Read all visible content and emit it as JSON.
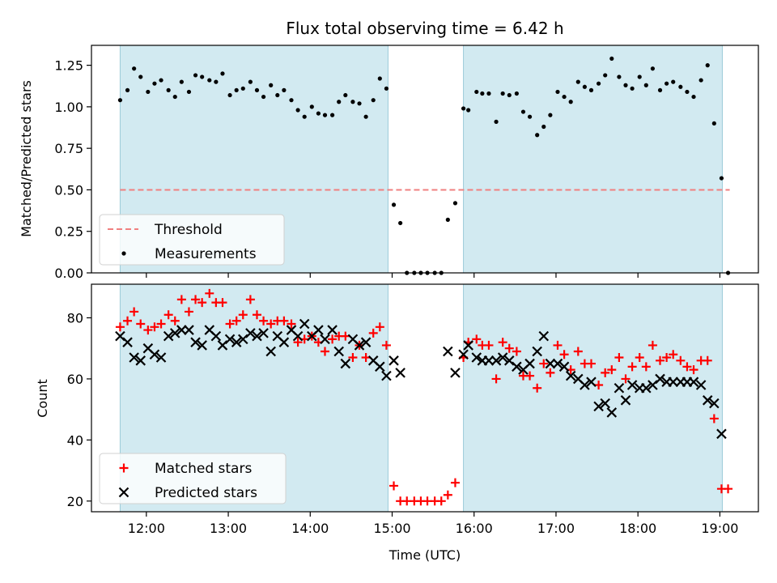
{
  "chart_data": [
    {
      "type": "scatter",
      "title": "Flux total observing time = 6.42 h",
      "xlabel": "",
      "ylabel": "Matched/Predicted stars",
      "xlim": [
        11.33,
        19.47
      ],
      "ylim": [
        0,
        1.37
      ],
      "xticks": [
        12,
        13,
        14,
        15,
        16,
        17,
        18,
        19
      ],
      "yticks": [
        0,
        0.25,
        0.5,
        0.75,
        1.0,
        1.25
      ],
      "ytick_labels": [
        "0.00",
        "0.25",
        "0.50",
        "0.75",
        "1.00",
        "1.25"
      ],
      "shaded_ranges": [
        [
          11.68,
          14.95
        ],
        [
          15.87,
          19.03
        ]
      ],
      "threshold": {
        "name": "Threshold",
        "value": 0.5,
        "x_range": [
          11.68,
          19.12
        ],
        "color": "#f08080"
      },
      "legend": {
        "placement": "lower-left",
        "entries": [
          "Threshold",
          "Measurements"
        ]
      },
      "series": [
        {
          "name": "Measurements",
          "color": "#000000",
          "marker": "dot",
          "x": [
            11.68,
            11.77,
            11.85,
            11.93,
            12.02,
            12.1,
            12.18,
            12.27,
            12.35,
            12.43,
            12.52,
            12.6,
            12.68,
            12.77,
            12.85,
            12.93,
            13.02,
            13.1,
            13.18,
            13.27,
            13.35,
            13.43,
            13.52,
            13.6,
            13.68,
            13.77,
            13.85,
            13.93,
            14.02,
            14.1,
            14.18,
            14.27,
            14.35,
            14.43,
            14.52,
            14.6,
            14.68,
            14.77,
            14.85,
            14.93,
            15.02,
            15.1,
            15.18,
            15.27,
            15.35,
            15.43,
            15.52,
            15.6,
            15.68,
            15.77,
            15.87,
            15.93,
            16.03,
            16.1,
            16.18,
            16.27,
            16.35,
            16.43,
            16.52,
            16.6,
            16.68,
            16.77,
            16.85,
            16.93,
            17.02,
            17.1,
            17.18,
            17.27,
            17.35,
            17.43,
            17.52,
            17.6,
            17.68,
            17.77,
            17.85,
            17.93,
            18.02,
            18.1,
            18.18,
            18.27,
            18.35,
            18.43,
            18.52,
            18.6,
            18.68,
            18.77,
            18.85,
            18.93,
            19.02,
            19.1
          ],
          "y": [
            1.04,
            1.1,
            1.23,
            1.18,
            1.09,
            1.14,
            1.16,
            1.1,
            1.06,
            1.15,
            1.09,
            1.19,
            1.18,
            1.16,
            1.15,
            1.2,
            1.07,
            1.1,
            1.11,
            1.15,
            1.1,
            1.06,
            1.13,
            1.07,
            1.1,
            1.04,
            0.98,
            0.94,
            1.0,
            0.96,
            0.95,
            0.95,
            1.03,
            1.07,
            1.03,
            1.02,
            0.94,
            1.04,
            1.17,
            1.11,
            0.41,
            0.3,
            0.0,
            0.0,
            0.0,
            0.0,
            0.0,
            0.0,
            0.32,
            0.42,
            0.99,
            0.98,
            1.09,
            1.08,
            1.08,
            0.91,
            1.08,
            1.07,
            1.08,
            0.97,
            0.94,
            0.83,
            0.88,
            0.95,
            1.09,
            1.06,
            1.03,
            1.15,
            1.12,
            1.1,
            1.14,
            1.19,
            1.29,
            1.18,
            1.13,
            1.11,
            1.18,
            1.13,
            1.23,
            1.1,
            1.14,
            1.15,
            1.12,
            1.09,
            1.06,
            1.16,
            1.25,
            0.9,
            0.57,
            0.0
          ]
        }
      ]
    },
    {
      "type": "scatter",
      "title": "",
      "xlabel": "Time (UTC)",
      "ylabel": "Count",
      "xlim": [
        11.33,
        19.47
      ],
      "ylim": [
        16.5,
        91
      ],
      "xticks": [
        12,
        13,
        14,
        15,
        16,
        17,
        18,
        19
      ],
      "xtick_labels": [
        "12:00",
        "13:00",
        "14:00",
        "15:00",
        "16:00",
        "17:00",
        "18:00",
        "19:00"
      ],
      "yticks": [
        20,
        40,
        60,
        80
      ],
      "ytick_labels": [
        "20",
        "40",
        "60",
        "80"
      ],
      "shaded_ranges": [
        [
          11.68,
          14.95
        ],
        [
          15.87,
          19.03
        ]
      ],
      "legend": {
        "placement": "lower-left",
        "entries": [
          "Matched stars",
          "Predicted stars"
        ]
      },
      "series": [
        {
          "name": "Matched stars",
          "color": "#ff0000",
          "marker": "plus",
          "x": [
            11.68,
            11.77,
            11.85,
            11.93,
            12.02,
            12.1,
            12.18,
            12.27,
            12.35,
            12.43,
            12.52,
            12.6,
            12.68,
            12.77,
            12.85,
            12.93,
            13.02,
            13.1,
            13.18,
            13.27,
            13.35,
            13.43,
            13.52,
            13.6,
            13.68,
            13.77,
            13.85,
            13.93,
            14.02,
            14.1,
            14.18,
            14.27,
            14.35,
            14.43,
            14.52,
            14.6,
            14.68,
            14.77,
            14.85,
            14.93,
            15.02,
            15.1,
            15.18,
            15.27,
            15.35,
            15.43,
            15.52,
            15.6,
            15.68,
            15.77,
            15.87,
            15.93,
            16.03,
            16.1,
            16.18,
            16.27,
            16.35,
            16.43,
            16.52,
            16.6,
            16.68,
            16.77,
            16.85,
            16.93,
            17.02,
            17.1,
            17.18,
            17.27,
            17.35,
            17.43,
            17.52,
            17.6,
            17.68,
            17.77,
            17.85,
            17.93,
            18.02,
            18.1,
            18.18,
            18.27,
            18.35,
            18.43,
            18.52,
            18.6,
            18.68,
            18.77,
            18.85,
            18.93,
            19.02,
            19.1
          ],
          "y": [
            77,
            79,
            82,
            78,
            76,
            77,
            78,
            81,
            79,
            86,
            82,
            86,
            85,
            88,
            85,
            85,
            78,
            79,
            81,
            86,
            81,
            79,
            78,
            79,
            79,
            78,
            72,
            73,
            74,
            72,
            69,
            73,
            74,
            74,
            67,
            71,
            67,
            75,
            77,
            71,
            25,
            20,
            20,
            20,
            20,
            20,
            20,
            20,
            22,
            26,
            67,
            72,
            73,
            71,
            71,
            60,
            72,
            70,
            69,
            61,
            61,
            57,
            65,
            62,
            71,
            68,
            63,
            69,
            65,
            65,
            58,
            62,
            63,
            67,
            60,
            64,
            67,
            64,
            71,
            66,
            67,
            68,
            66,
            64,
            63,
            66,
            66,
            47,
            24,
            24
          ]
        },
        {
          "name": "Predicted stars",
          "color": "#000000",
          "marker": "cross",
          "x": [
            11.68,
            11.77,
            11.85,
            11.93,
            12.02,
            12.1,
            12.18,
            12.27,
            12.35,
            12.43,
            12.52,
            12.6,
            12.68,
            12.77,
            12.85,
            12.93,
            13.02,
            13.1,
            13.18,
            13.27,
            13.35,
            13.43,
            13.52,
            13.6,
            13.68,
            13.77,
            13.85,
            13.93,
            14.02,
            14.1,
            14.18,
            14.27,
            14.35,
            14.43,
            14.52,
            14.6,
            14.68,
            14.77,
            14.85,
            14.93,
            15.02,
            15.1,
            15.68,
            15.77,
            15.87,
            15.93,
            16.03,
            16.1,
            16.18,
            16.27,
            16.35,
            16.43,
            16.52,
            16.6,
            16.68,
            16.77,
            16.85,
            16.93,
            17.02,
            17.1,
            17.18,
            17.27,
            17.35,
            17.43,
            17.52,
            17.6,
            17.68,
            17.77,
            17.85,
            17.93,
            18.02,
            18.1,
            18.18,
            18.27,
            18.35,
            18.43,
            18.52,
            18.6,
            18.68,
            18.77,
            18.85,
            18.93,
            19.02
          ],
          "y": [
            74,
            72,
            67,
            66,
            70,
            68,
            67,
            74,
            75,
            76,
            76,
            72,
            71,
            76,
            74,
            71,
            73,
            72,
            73,
            75,
            74,
            75,
            69,
            74,
            72,
            76,
            74,
            78,
            74,
            76,
            73,
            76,
            69,
            65,
            73,
            71,
            72,
            66,
            64,
            61,
            66,
            62,
            69,
            62,
            68,
            71,
            67,
            66,
            66,
            66,
            67,
            66,
            64,
            63,
            65,
            69,
            74,
            65,
            65,
            64,
            61,
            60,
            58,
            59,
            51,
            52,
            49,
            57,
            53,
            58,
            57,
            57,
            58,
            60,
            59,
            59,
            59,
            59,
            59,
            58,
            53,
            52,
            42
          ]
        }
      ]
    }
  ]
}
